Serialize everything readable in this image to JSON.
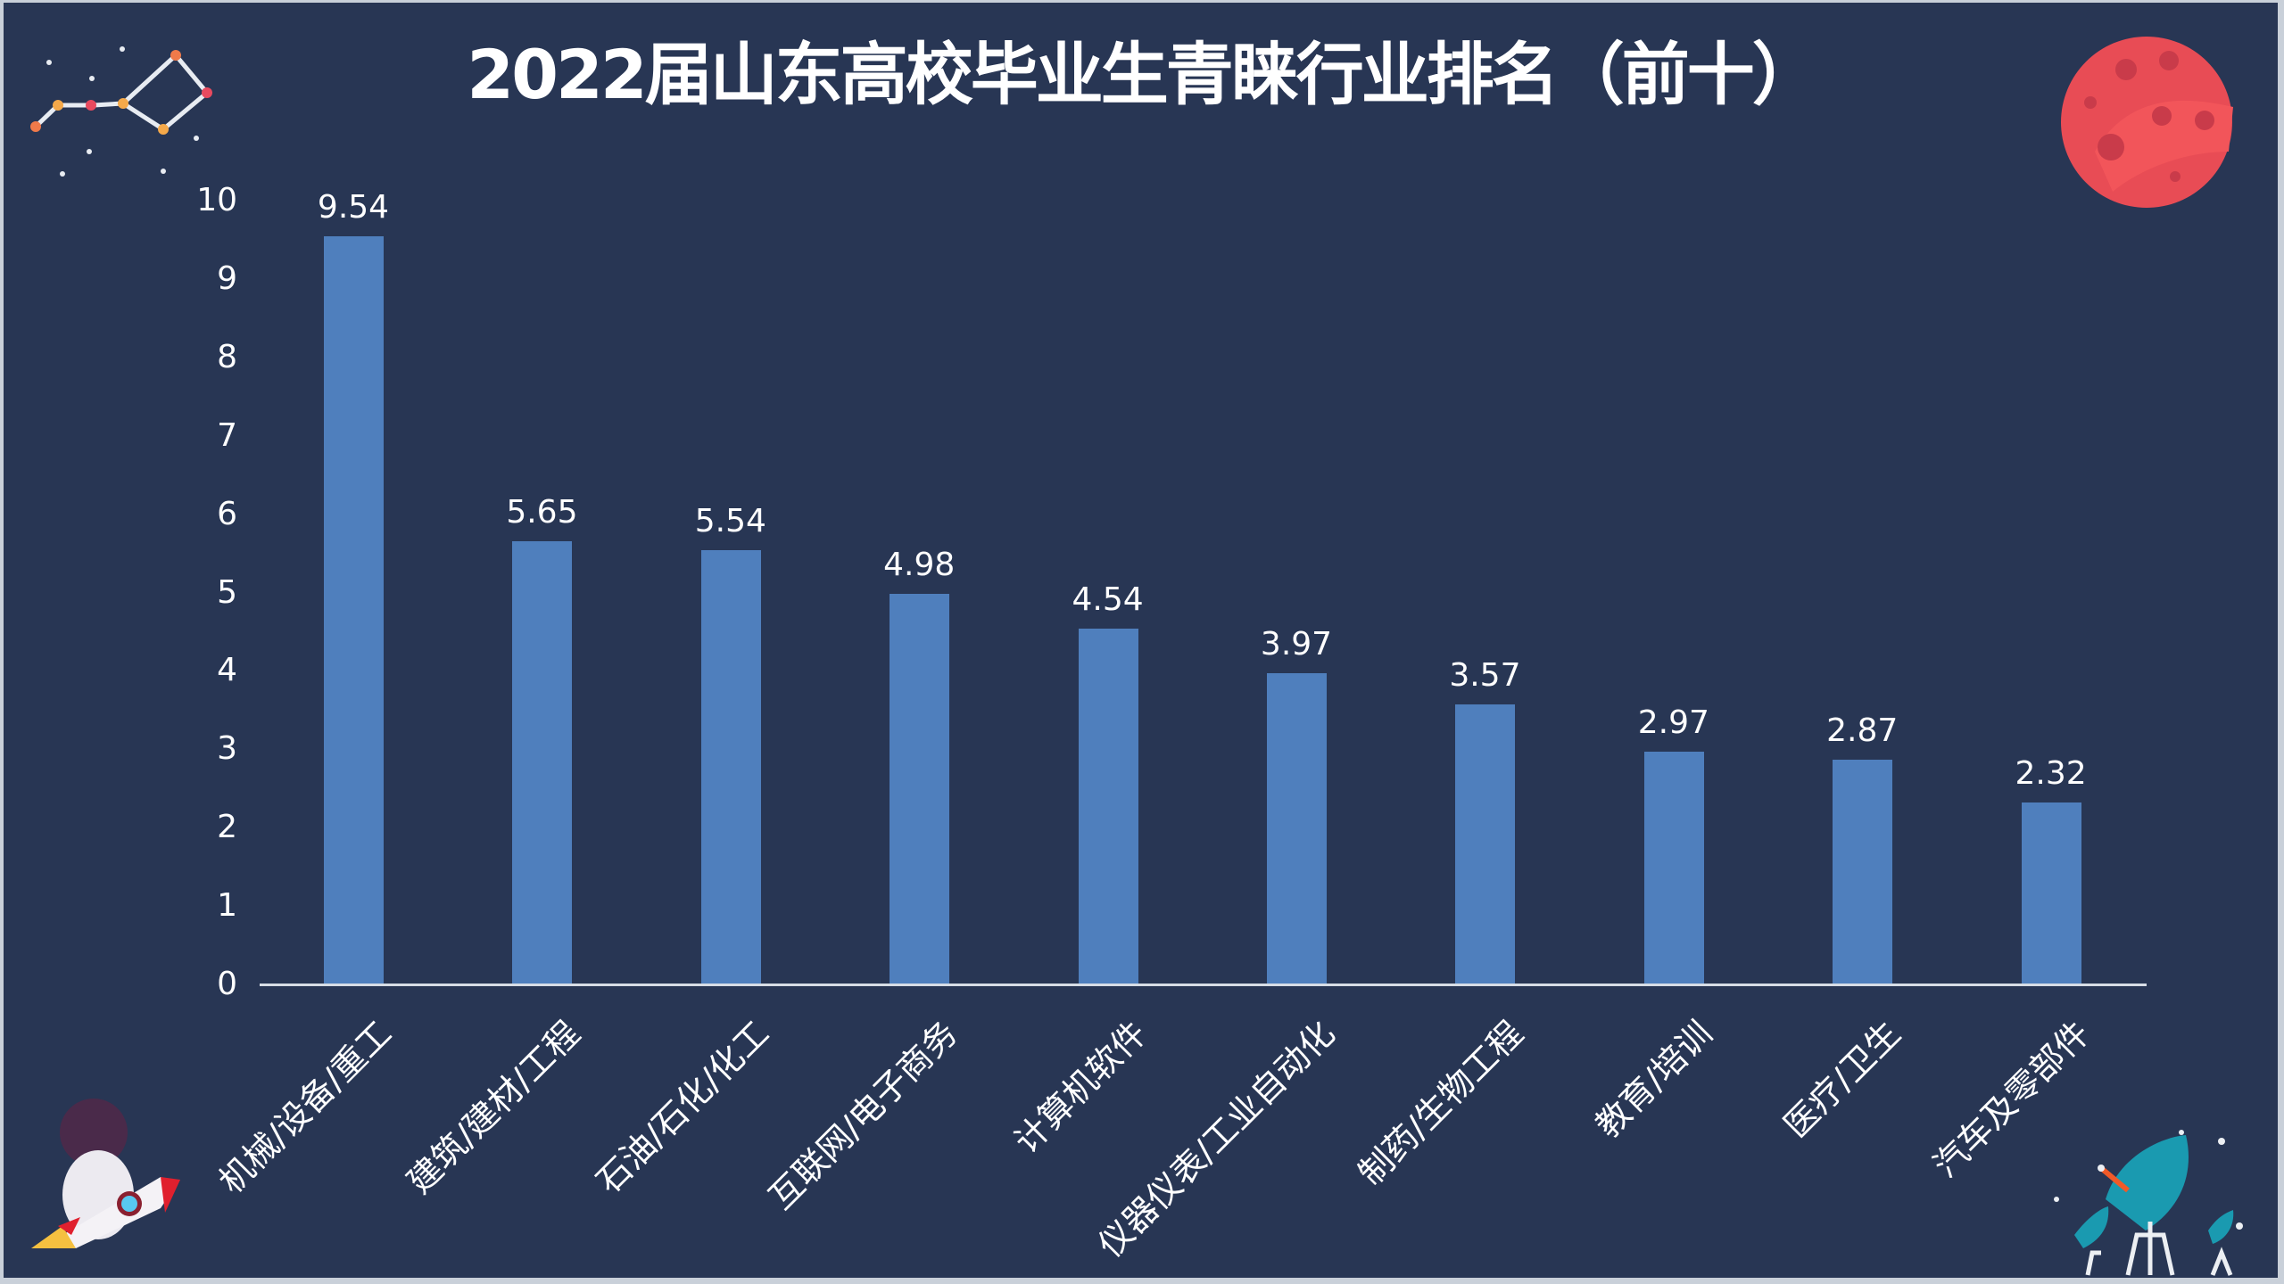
{
  "title": "2022届山东高校毕业生青睐行业排名（前十）",
  "colors": {
    "background": "#283654",
    "bar": "#4f7fbd",
    "text": "#ffffff",
    "axis": "#d7dde6"
  },
  "decorations": [
    "constellation-icon",
    "planet-icon",
    "astronaut-rocket-icon",
    "satellite-dish-icon"
  ],
  "chart_data": {
    "type": "bar",
    "title": "2022届山东高校毕业生青睐行业排名（前十）",
    "categories": [
      "机械/设备/重工",
      "建筑/建材/工程",
      "石油/石化/化工",
      "互联网/电子商务",
      "计算机软件",
      "仪器仪表/工业自动化",
      "制药/生物工程",
      "教育/培训",
      "医疗/卫生",
      "汽车及零部件"
    ],
    "values": [
      9.54,
      5.65,
      5.54,
      4.98,
      4.54,
      3.97,
      3.57,
      2.97,
      2.87,
      2.32
    ],
    "value_labels": [
      "9.54",
      "5.65",
      "5.54",
      "4.98",
      "4.54",
      "3.97",
      "3.57",
      "2.97",
      "2.87",
      "2.32"
    ],
    "xlabel": "",
    "ylabel": "",
    "ylim": [
      0,
      10
    ],
    "yticks": [
      "0",
      "1",
      "2",
      "3",
      "4",
      "5",
      "6",
      "7",
      "8",
      "9",
      "10"
    ],
    "grid": false,
    "legend": null
  }
}
